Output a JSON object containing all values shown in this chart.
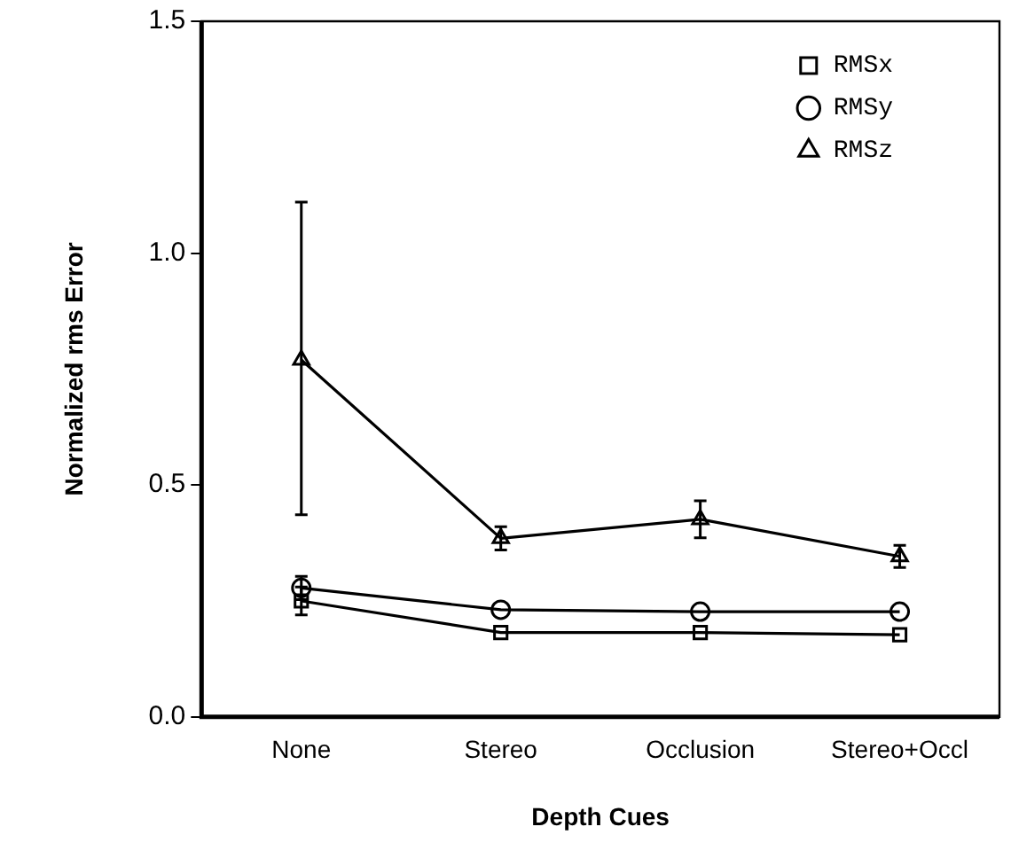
{
  "chart_data": {
    "type": "line",
    "xlabel": "Depth Cues",
    "ylabel": "Normalized rms Error",
    "categories": [
      "None",
      "Stereo",
      "Occlusion",
      "Stereo+Occl"
    ],
    "ylim": [
      0,
      1.5
    ],
    "yticks": [
      {
        "value": 0,
        "label": "0.0"
      },
      0.5,
      {
        "value": 1,
        "label": "1.0"
      },
      1.5
    ],
    "grid": false,
    "legend": "top right",
    "line_style": "solid",
    "series": [
      {
        "name": "RMSx",
        "color": "#000000",
        "marker": "square",
        "values": [
          0.25,
          0.182,
          0.182,
          0.177
        ],
        "errors": [
          0.03,
          null,
          null,
          null
        ]
      },
      {
        "name": "RMSy",
        "color": "#000000",
        "marker": "circle",
        "values": [
          0.278,
          0.231,
          0.227,
          0.227
        ],
        "errors": [
          0.025,
          null,
          null,
          null
        ]
      },
      {
        "name": "RMSz",
        "color": "#000000",
        "marker": "triangle",
        "values": [
          0.77,
          0.385,
          0.426,
          0.346
        ],
        "errors": [
          [
            0.436,
            1.11
          ],
          0.025,
          0.04,
          0.024
        ]
      }
    ]
  }
}
